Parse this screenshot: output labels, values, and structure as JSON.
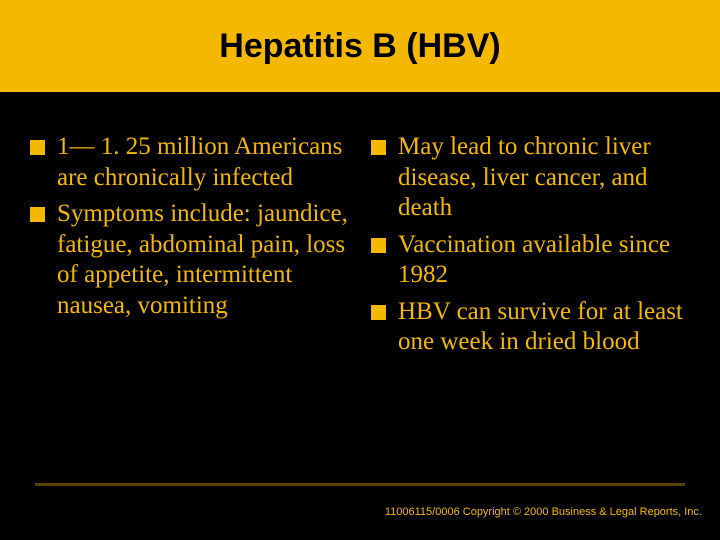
{
  "colors": {
    "background": "#000000",
    "accent": "#f4b800",
    "title_text": "#000000",
    "body_text": "#f4b800"
  },
  "title": "Hepatitis B (HBV)",
  "left_bullets": [
    "1— 1. 25 million Americans are chronically infected",
    "Symptoms include: jaundice, fatigue, abdominal pain, loss of appetite, intermittent nausea, vomiting"
  ],
  "right_bullets": [
    "May lead to chronic liver disease, liver cancer, and death",
    "Vaccination available since 1982",
    "HBV can survive for at least one week in dried blood"
  ],
  "footer": "11006115/0006 Copyright © 2000 Business & Legal Reports, Inc."
}
